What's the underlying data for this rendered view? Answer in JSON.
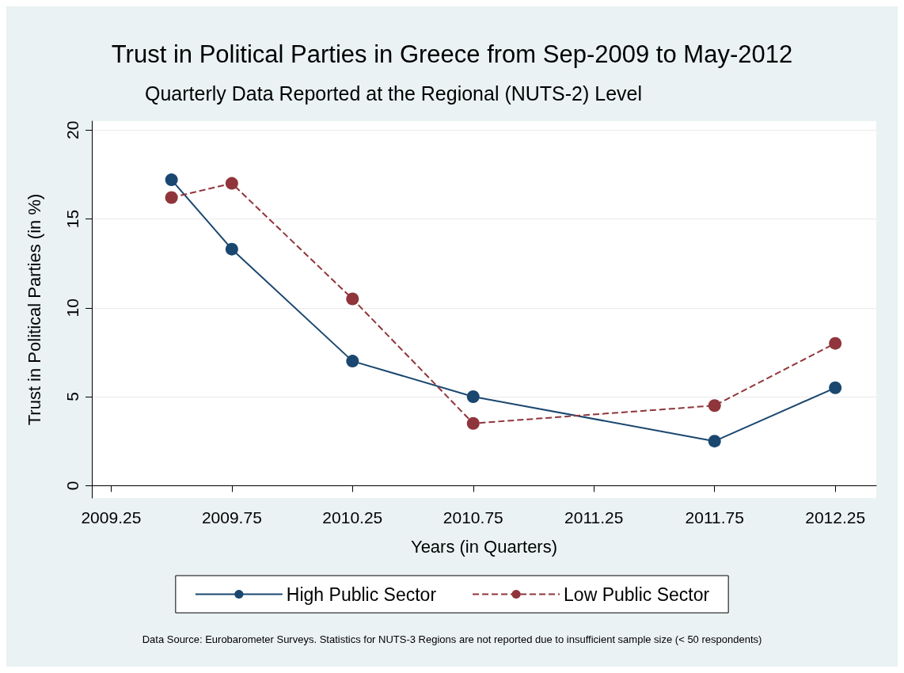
{
  "chart_data": {
    "type": "line",
    "title": "Trust in Political Parties in Greece from Sep-2009 to May-2012",
    "subtitle": "Quarterly Data Reported at the Regional (NUTS-2) Level",
    "xlabel": "Years (in Quarters)",
    "ylabel": "Trust in Political Parties (in %)",
    "annotations": [
      "Data Source: Eurobarometer Surveys. Statistics for NUTS-3 Regions are not reported due to insufficient sample size (< 50 respondents)"
    ],
    "x": [
      2009.5,
      2009.75,
      2010.25,
      2010.75,
      2011.75,
      2012.25
    ],
    "series": [
      {
        "name": "High Public Sector",
        "color": "#1a476f",
        "line_style": "solid",
        "values": [
          17.2,
          13.3,
          7.0,
          5.0,
          2.5,
          5.5
        ]
      },
      {
        "name": "Low Public Sector",
        "color": "#90353b",
        "line_style": "dashed",
        "values": [
          16.2,
          17.0,
          10.5,
          3.5,
          4.5,
          8.0
        ]
      }
    ],
    "xlim": [
      2009.17,
      2012.42
    ],
    "xticks": [
      2009.25,
      2009.75,
      2010.25,
      2010.75,
      2011.25,
      2011.75,
      2012.25
    ],
    "ylim": [
      -0.7,
      20.5
    ],
    "yticks": [
      0,
      5,
      10,
      15,
      20
    ],
    "grid": "y",
    "legend": "bottom",
    "marker": "circle"
  }
}
